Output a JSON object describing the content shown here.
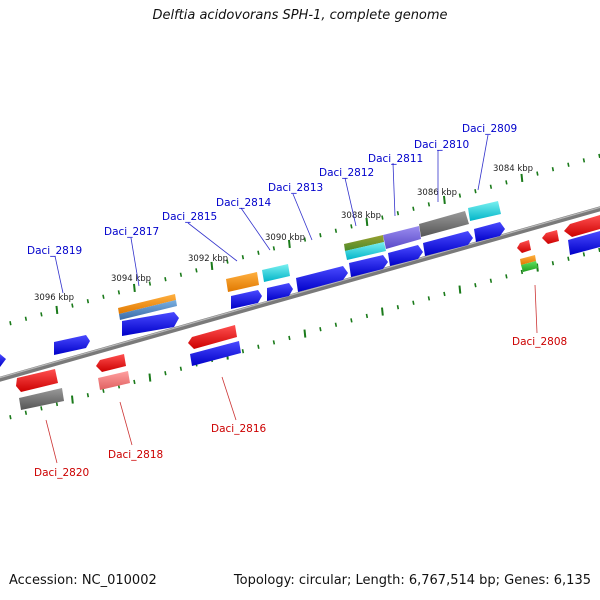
{
  "title": "Delftia acidovorans SPH-1, complete genome",
  "footer": {
    "accession": "Accession: NC_010002",
    "topology": "Topology: circular; Length: 6,767,514 bp; Genes: 6,135"
  },
  "ruler_labels": [
    "3096 kbp",
    "3094 kbp",
    "3092 kbp",
    "3090 kbp",
    "3088 kbp",
    "3086 kbp",
    "3084 kbp"
  ],
  "gene_labels_top": [
    "Daci_2819",
    "Daci_2817",
    "Daci_2815",
    "Daci_2814",
    "Daci_2813",
    "Daci_2812",
    "Daci_2811",
    "Daci_2810",
    "Daci_2809"
  ],
  "gene_labels_bottom": [
    "Daci_2820",
    "Daci_2818",
    "Daci_2816",
    "Daci_2808"
  ],
  "colors": {
    "forward_gene": "#0000ee",
    "reverse_gene": "#ee0000",
    "top_label": "#0000cc",
    "bottom_label": "#cc0000",
    "backbone": "#808080",
    "tick": "#1a7a1a"
  }
}
